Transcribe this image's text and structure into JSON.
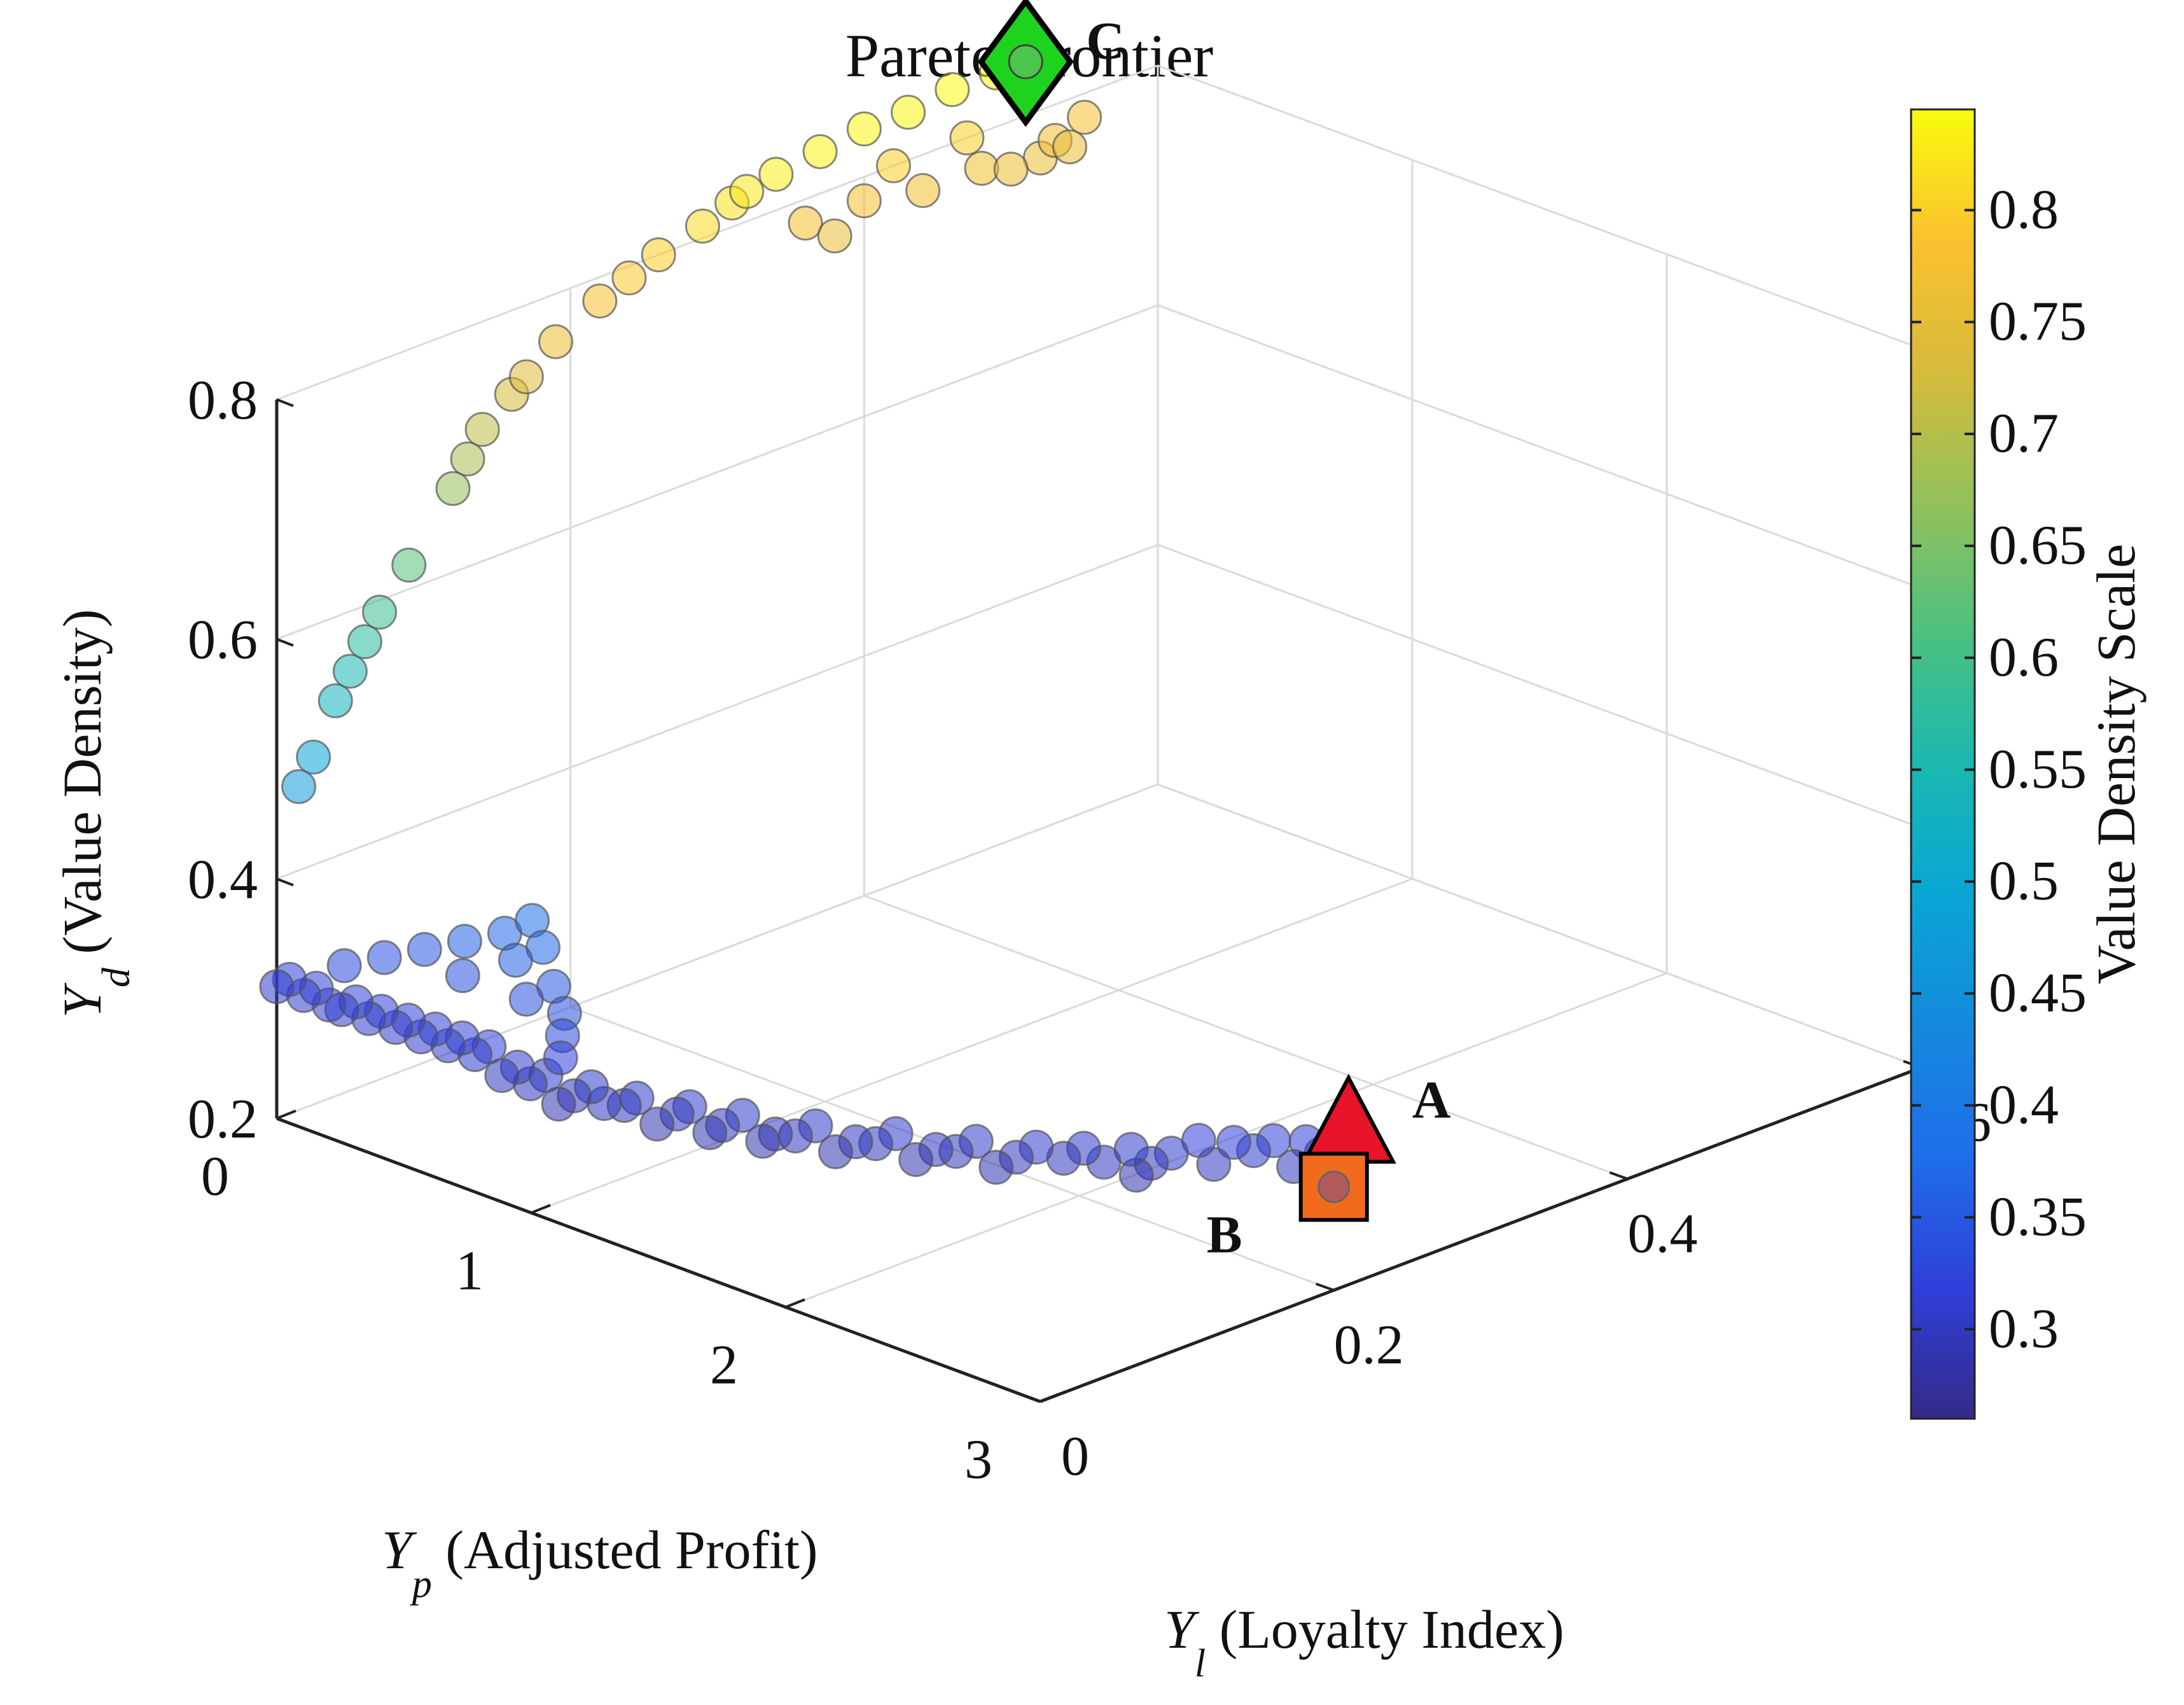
{
  "chart_data": {
    "type": "scatter",
    "title": "Pareto Frontier",
    "axes": {
      "x": {
        "symbol": "Y",
        "subscript": "p",
        "label": " (Adjusted Profit)",
        "range": [
          0,
          3
        ],
        "ticks": [
          "0",
          "1",
          "2",
          "3"
        ],
        "tick_values": [
          0,
          1,
          2,
          3
        ]
      },
      "y": {
        "symbol": "Y",
        "subscript": "l",
        "label": " (Loyalty Index)",
        "range": [
          0,
          0.6
        ],
        "ticks": [
          "0",
          "0.2",
          "0.4",
          "0.6"
        ],
        "tick_values": [
          0,
          0.2,
          0.4,
          0.6
        ]
      },
      "z": {
        "symbol": "Y",
        "subscript": "d",
        "label": " (Value Density)",
        "range": [
          0.2,
          0.8
        ],
        "ticks": [
          "0.2",
          "0.4",
          "0.6",
          "0.8"
        ],
        "tick_values": [
          0.2,
          0.4,
          0.6,
          0.8
        ]
      }
    },
    "grid": true,
    "colorbar": {
      "label": "Value Density Scale",
      "range": [
        0.26,
        0.845
      ],
      "ticks": [
        "0.3",
        "0.35",
        "0.4",
        "0.45",
        "0.5",
        "0.55",
        "0.6",
        "0.65",
        "0.7",
        "0.75",
        "0.8"
      ],
      "tick_values": [
        0.3,
        0.35,
        0.4,
        0.45,
        0.5,
        0.55,
        0.6,
        0.65,
        0.7,
        0.75,
        0.8
      ],
      "colormap": "parula"
    },
    "points": [
      {
        "x": 2.98,
        "y": 0.205,
        "z": 0.3
      },
      {
        "x": 2.95,
        "y": 0.2,
        "z": 0.31
      },
      {
        "x": 2.92,
        "y": 0.195,
        "z": 0.32
      },
      {
        "x": 2.9,
        "y": 0.19,
        "z": 0.3
      },
      {
        "x": 2.85,
        "y": 0.185,
        "z": 0.32
      },
      {
        "x": 2.8,
        "y": 0.18,
        "z": 0.31
      },
      {
        "x": 2.78,
        "y": 0.17,
        "z": 0.32
      },
      {
        "x": 2.73,
        "y": 0.165,
        "z": 0.3
      },
      {
        "x": 2.7,
        "y": 0.16,
        "z": 0.32
      },
      {
        "x": 2.65,
        "y": 0.15,
        "z": 0.31
      },
      {
        "x": 2.6,
        "y": 0.145,
        "z": 0.3
      },
      {
        "x": 2.57,
        "y": 0.14,
        "z": 0.29
      },
      {
        "x": 2.55,
        "y": 0.14,
        "z": 0.31
      },
      {
        "x": 2.5,
        "y": 0.13,
        "z": 0.3
      },
      {
        "x": 2.45,
        "y": 0.125,
        "z": 0.31
      },
      {
        "x": 2.4,
        "y": 0.12,
        "z": 0.3
      },
      {
        "x": 2.35,
        "y": 0.11,
        "z": 0.31
      },
      {
        "x": 2.3,
        "y": 0.105,
        "z": 0.3
      },
      {
        "x": 2.25,
        "y": 0.1,
        "z": 0.29
      },
      {
        "x": 2.2,
        "y": 0.095,
        "z": 0.31
      },
      {
        "x": 2.15,
        "y": 0.09,
        "z": 0.3
      },
      {
        "x": 2.1,
        "y": 0.085,
        "z": 0.3
      },
      {
        "x": 2.05,
        "y": 0.08,
        "z": 0.29
      },
      {
        "x": 2.0,
        "y": 0.075,
        "z": 0.31
      },
      {
        "x": 1.95,
        "y": 0.07,
        "z": 0.3
      },
      {
        "x": 1.9,
        "y": 0.065,
        "z": 0.3
      },
      {
        "x": 1.85,
        "y": 0.06,
        "z": 0.29
      },
      {
        "x": 1.8,
        "y": 0.055,
        "z": 0.31
      },
      {
        "x": 1.75,
        "y": 0.05,
        "z": 0.3
      },
      {
        "x": 1.7,
        "y": 0.045,
        "z": 0.3
      },
      {
        "x": 1.65,
        "y": 0.045,
        "z": 0.29
      },
      {
        "x": 1.6,
        "y": 0.04,
        "z": 0.31
      },
      {
        "x": 1.55,
        "y": 0.035,
        "z": 0.3
      },
      {
        "x": 1.5,
        "y": 0.035,
        "z": 0.29
      },
      {
        "x": 1.45,
        "y": 0.03,
        "z": 0.31
      },
      {
        "x": 1.4,
        "y": 0.03,
        "z": 0.3
      },
      {
        "x": 1.35,
        "y": 0.025,
        "z": 0.29
      },
      {
        "x": 1.3,
        "y": 0.02,
        "z": 0.31
      },
      {
        "x": 1.25,
        "y": 0.02,
        "z": 0.3
      },
      {
        "x": 1.2,
        "y": 0.015,
        "z": 0.3
      },
      {
        "x": 1.15,
        "y": 0.015,
        "z": 0.31
      },
      {
        "x": 1.1,
        "y": 0.012,
        "z": 0.3
      },
      {
        "x": 1.05,
        "y": 0.01,
        "z": 0.29
      },
      {
        "x": 1.0,
        "y": 0.01,
        "z": 0.31
      },
      {
        "x": 0.95,
        "y": 0.008,
        "z": 0.3
      },
      {
        "x": 0.9,
        "y": 0.008,
        "z": 0.31
      },
      {
        "x": 0.85,
        "y": 0.006,
        "z": 0.3
      },
      {
        "x": 0.8,
        "y": 0.006,
        "z": 0.32
      },
      {
        "x": 0.75,
        "y": 0.005,
        "z": 0.31
      },
      {
        "x": 0.7,
        "y": 0.005,
        "z": 0.32
      },
      {
        "x": 0.65,
        "y": 0.004,
        "z": 0.31
      },
      {
        "x": 0.6,
        "y": 0.004,
        "z": 0.32
      },
      {
        "x": 0.55,
        "y": 0.003,
        "z": 0.31
      },
      {
        "x": 0.5,
        "y": 0.003,
        "z": 0.32
      },
      {
        "x": 0.45,
        "y": 0.003,
        "z": 0.31
      },
      {
        "x": 0.4,
        "y": 0.002,
        "z": 0.32
      },
      {
        "x": 0.35,
        "y": 0.002,
        "z": 0.31
      },
      {
        "x": 0.3,
        "y": 0.002,
        "z": 0.32
      },
      {
        "x": 0.25,
        "y": 0.001,
        "z": 0.31
      },
      {
        "x": 0.2,
        "y": 0.001,
        "z": 0.31
      },
      {
        "x": 0.15,
        "y": 0.001,
        "z": 0.32
      },
      {
        "x": 0.1,
        "y": 0.001,
        "z": 0.31
      },
      {
        "x": 0.05,
        "y": 0.0,
        "z": 0.32
      },
      {
        "x": 0.0,
        "y": 0.0,
        "z": 0.31
      },
      {
        "x": 0.15,
        "y": 0.02,
        "z": 0.33
      },
      {
        "x": 0.25,
        "y": 0.03,
        "z": 0.34
      },
      {
        "x": 0.35,
        "y": 0.04,
        "z": 0.35
      },
      {
        "x": 0.45,
        "y": 0.05,
        "z": 0.36
      },
      {
        "x": 0.55,
        "y": 0.06,
        "z": 0.37
      },
      {
        "x": 0.6,
        "y": 0.07,
        "z": 0.38
      },
      {
        "x": 0.7,
        "y": 0.06,
        "z": 0.37
      },
      {
        "x": 0.8,
        "y": 0.05,
        "z": 0.35
      },
      {
        "x": 0.9,
        "y": 0.04,
        "z": 0.34
      },
      {
        "x": 0.95,
        "y": 0.03,
        "z": 0.33
      },
      {
        "x": 1.0,
        "y": 0.02,
        "z": 0.32
      },
      {
        "x": 0.5,
        "y": 0.04,
        "z": 0.34
      },
      {
        "x": 0.65,
        "y": 0.05,
        "z": 0.36
      },
      {
        "x": 0.75,
        "y": 0.04,
        "z": 0.34
      },
      {
        "x": 0.0,
        "y": 0.015,
        "z": 0.47
      },
      {
        "x": 0.0,
        "y": 0.025,
        "z": 0.49
      },
      {
        "x": 0.0,
        "y": 0.04,
        "z": 0.53
      },
      {
        "x": 0.0,
        "y": 0.05,
        "z": 0.55
      },
      {
        "x": 0.0,
        "y": 0.06,
        "z": 0.57
      },
      {
        "x": 0.0,
        "y": 0.07,
        "z": 0.59
      },
      {
        "x": 0.0,
        "y": 0.09,
        "z": 0.62
      },
      {
        "x": 0.0,
        "y": 0.12,
        "z": 0.67
      },
      {
        "x": 0.0,
        "y": 0.13,
        "z": 0.69
      },
      {
        "x": 0.0,
        "y": 0.14,
        "z": 0.71
      },
      {
        "x": 0.0,
        "y": 0.16,
        "z": 0.73
      },
      {
        "x": 0.0,
        "y": 0.17,
        "z": 0.74
      },
      {
        "x": 0.0,
        "y": 0.19,
        "z": 0.76
      },
      {
        "x": 0.0,
        "y": 0.22,
        "z": 0.78
      },
      {
        "x": 0.0,
        "y": 0.24,
        "z": 0.79
      },
      {
        "x": 0.0,
        "y": 0.26,
        "z": 0.8
      },
      {
        "x": 0.0,
        "y": 0.29,
        "z": 0.81
      },
      {
        "x": 0.0,
        "y": 0.31,
        "z": 0.82
      },
      {
        "x": 0.0,
        "y": 0.32,
        "z": 0.825
      },
      {
        "x": 0.0,
        "y": 0.34,
        "z": 0.83
      },
      {
        "x": 0.0,
        "y": 0.37,
        "z": 0.835
      },
      {
        "x": 0.0,
        "y": 0.4,
        "z": 0.84
      },
      {
        "x": 0.0,
        "y": 0.43,
        "z": 0.84
      },
      {
        "x": 0.0,
        "y": 0.46,
        "z": 0.845
      },
      {
        "x": 0.0,
        "y": 0.49,
        "z": 0.845
      },
      {
        "x": 0.0,
        "y": 0.51,
        "z": 0.845
      },
      {
        "x": 0.0,
        "y": 0.36,
        "z": 0.78
      },
      {
        "x": 0.0,
        "y": 0.4,
        "z": 0.78
      },
      {
        "x": 0.0,
        "y": 0.44,
        "z": 0.77
      },
      {
        "x": 0.0,
        "y": 0.48,
        "z": 0.77
      },
      {
        "x": 0.0,
        "y": 0.52,
        "z": 0.76
      },
      {
        "x": 0.0,
        "y": 0.5,
        "z": 0.76
      },
      {
        "x": 0.0,
        "y": 0.53,
        "z": 0.77
      },
      {
        "x": 0.0,
        "y": 0.54,
        "z": 0.76
      },
      {
        "x": 0.0,
        "y": 0.55,
        "z": 0.78
      },
      {
        "x": 0.0,
        "y": 0.38,
        "z": 0.76
      },
      {
        "x": 0.0,
        "y": 0.42,
        "z": 0.8
      },
      {
        "x": 0.0,
        "y": 0.47,
        "z": 0.8
      }
    ],
    "annotations": [
      {
        "label": "A",
        "marker": "triangle",
        "color": "#e8142a",
        "x": 3.0,
        "y": 0.21,
        "z": 0.31
      },
      {
        "label": "B",
        "marker": "square",
        "color": "#f26b1d",
        "x": 3.0,
        "y": 0.2,
        "z": 0.29
      },
      {
        "label": "C",
        "marker": "diamond",
        "color": "#1ed31e",
        "x": 0.0,
        "y": 0.51,
        "z": 0.845
      }
    ]
  }
}
